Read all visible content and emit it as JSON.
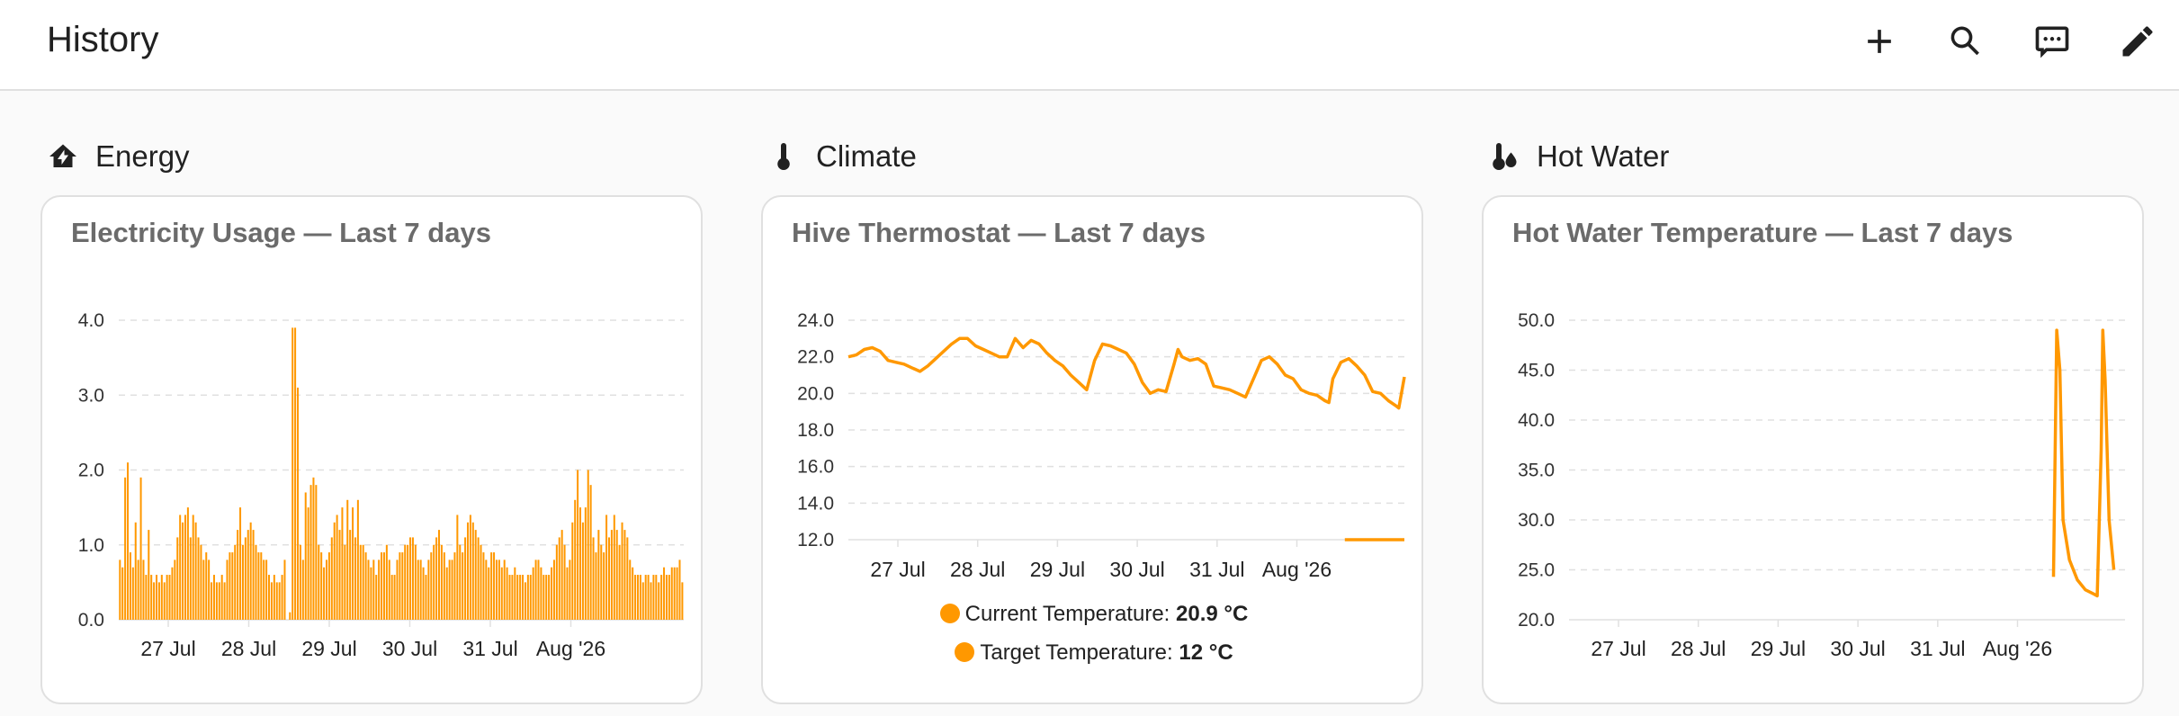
{
  "header": {
    "title": "History",
    "actions": [
      {
        "icon": "plus-icon"
      },
      {
        "icon": "search-icon"
      },
      {
        "icon": "chat-icon"
      },
      {
        "icon": "pencil-icon"
      }
    ]
  },
  "sections": [
    {
      "label": "Energy",
      "icon": "home-lightning-icon"
    },
    {
      "label": "Climate",
      "icon": "thermometer-icon"
    },
    {
      "label": "Hot Water",
      "icon": "thermometer-water-icon"
    }
  ],
  "colors": {
    "accent": "#ff9800",
    "grid": "#e0e0e0"
  },
  "chart_data": [
    {
      "type": "bar",
      "title": "Electricity Usage — Last 7 days",
      "xtick_labels": [
        "27 Jul",
        "28 Jul",
        "29 Jul",
        "30 Jul",
        "31 Jul",
        "Aug '26"
      ],
      "ytick_labels": [
        "0.0",
        "1.0",
        "2.0",
        "3.0",
        "4.0"
      ],
      "ylim": [
        0,
        4.0
      ],
      "grid": true,
      "values": [
        0.8,
        0.7,
        1.9,
        2.1,
        0.9,
        0.7,
        1.3,
        0.8,
        1.9,
        0.8,
        0.6,
        1.2,
        0.6,
        0.5,
        0.6,
        0.5,
        0.6,
        0.5,
        0.6,
        0.6,
        0.7,
        0.8,
        1.1,
        1.4,
        1.3,
        1.4,
        1.5,
        1.1,
        1.4,
        1.3,
        1.1,
        1.0,
        0.8,
        0.9,
        0.8,
        0.5,
        0.6,
        0.5,
        0.5,
        0.6,
        0.5,
        0.8,
        0.9,
        0.9,
        1.0,
        1.2,
        1.5,
        1.0,
        1.1,
        1.2,
        1.3,
        1.2,
        1.0,
        0.9,
        0.9,
        0.8,
        0.8,
        0.6,
        0.5,
        0.6,
        0.5,
        0.5,
        0.6,
        0.8,
        0.0,
        0.1,
        3.9,
        3.9,
        3.1,
        1.0,
        0.8,
        1.7,
        1.5,
        1.8,
        1.9,
        1.8,
        1.0,
        0.9,
        0.7,
        0.8,
        0.9,
        1.1,
        1.3,
        1.4,
        1.2,
        1.5,
        1.0,
        1.6,
        1.2,
        1.5,
        1.1,
        1.6,
        1.0,
        1.0,
        0.9,
        0.8,
        0.7,
        0.8,
        0.6,
        0.8,
        0.9,
        0.9,
        1.0,
        0.8,
        0.6,
        0.6,
        0.8,
        0.9,
        0.9,
        1.0,
        1.0,
        1.1,
        1.1,
        1.0,
        0.8,
        0.8,
        0.7,
        0.6,
        0.8,
        0.9,
        1.0,
        1.1,
        1.2,
        1.0,
        0.9,
        0.7,
        0.8,
        0.8,
        0.9,
        1.4,
        1.0,
        0.9,
        1.1,
        1.3,
        1.4,
        1.3,
        1.2,
        1.1,
        1.0,
        0.9,
        0.8,
        0.7,
        0.9,
        0.9,
        0.8,
        0.8,
        0.7,
        0.8,
        0.7,
        0.6,
        0.6,
        0.7,
        0.6,
        0.6,
        0.6,
        0.5,
        0.6,
        0.6,
        0.7,
        0.8,
        0.8,
        0.7,
        0.6,
        0.6,
        0.6,
        0.7,
        0.8,
        1.0,
        1.1,
        1.2,
        1.0,
        0.7,
        0.8,
        1.3,
        1.6,
        2.0,
        1.5,
        1.3,
        1.5,
        2.0,
        1.8,
        1.1,
        0.9,
        1.2,
        1.0,
        0.9,
        1.4,
        1.1,
        1.2,
        1.4,
        1.2,
        1.0,
        1.3,
        1.2,
        1.1,
        0.8,
        0.7,
        0.6,
        0.6,
        0.6,
        0.5,
        0.6,
        0.6,
        0.5,
        0.6,
        0.6,
        0.5,
        0.6,
        0.7,
        0.6,
        0.6,
        0.7,
        0.7,
        0.7,
        0.8,
        0.5
      ]
    },
    {
      "type": "line",
      "title": "Hive Thermostat — Last 7 days",
      "xtick_labels": [
        "27 Jul",
        "28 Jul",
        "29 Jul",
        "30 Jul",
        "31 Jul",
        "Aug '26"
      ],
      "ytick_labels": [
        "12.0",
        "14.0",
        "16.0",
        "18.0",
        "20.0",
        "22.0",
        "24.0"
      ],
      "ylim": [
        12,
        24
      ],
      "xlim": [
        0,
        7
      ],
      "grid": true,
      "series": [
        {
          "name": "Current Temperature",
          "legend_value": "20.9 °C",
          "points": [
            [
              0,
              22.0
            ],
            [
              0.1,
              22.1
            ],
            [
              0.2,
              22.4
            ],
            [
              0.3,
              22.5
            ],
            [
              0.4,
              22.3
            ],
            [
              0.5,
              21.8
            ],
            [
              0.6,
              21.7
            ],
            [
              0.7,
              21.6
            ],
            [
              0.8,
              21.4
            ],
            [
              0.9,
              21.2
            ],
            [
              1.0,
              21.5
            ],
            [
              1.1,
              21.9
            ],
            [
              1.2,
              22.3
            ],
            [
              1.3,
              22.7
            ],
            [
              1.4,
              23.0
            ],
            [
              1.5,
              23.0
            ],
            [
              1.6,
              22.6
            ],
            [
              1.7,
              22.4
            ],
            [
              1.8,
              22.2
            ],
            [
              1.9,
              22.0
            ],
            [
              2.0,
              22.0
            ],
            [
              2.1,
              23.0
            ],
            [
              2.2,
              22.5
            ],
            [
              2.3,
              22.9
            ],
            [
              2.4,
              22.7
            ],
            [
              2.5,
              22.2
            ],
            [
              2.6,
              21.8
            ],
            [
              2.7,
              21.5
            ],
            [
              2.8,
              21.0
            ],
            [
              2.9,
              20.6
            ],
            [
              3.0,
              20.2
            ],
            [
              3.1,
              21.8
            ],
            [
              3.2,
              22.7
            ],
            [
              3.3,
              22.6
            ],
            [
              3.4,
              22.4
            ],
            [
              3.5,
              22.2
            ],
            [
              3.6,
              21.6
            ],
            [
              3.7,
              20.6
            ],
            [
              3.8,
              20.0
            ],
            [
              3.9,
              20.2
            ],
            [
              4.0,
              20.1
            ],
            [
              4.1,
              21.6
            ],
            [
              4.15,
              22.4
            ],
            [
              4.2,
              22.0
            ],
            [
              4.3,
              21.8
            ],
            [
              4.4,
              21.9
            ],
            [
              4.5,
              21.6
            ],
            [
              4.6,
              20.4
            ],
            [
              4.7,
              20.3
            ],
            [
              4.8,
              20.2
            ],
            [
              4.9,
              20.0
            ],
            [
              5.0,
              19.8
            ],
            [
              5.1,
              20.8
            ],
            [
              5.2,
              21.8
            ],
            [
              5.3,
              22.0
            ],
            [
              5.4,
              21.6
            ],
            [
              5.5,
              21.0
            ],
            [
              5.6,
              20.8
            ],
            [
              5.7,
              20.2
            ],
            [
              5.8,
              20.0
            ],
            [
              5.9,
              19.9
            ],
            [
              6.0,
              19.6
            ],
            [
              6.05,
              19.5
            ],
            [
              6.1,
              20.8
            ],
            [
              6.2,
              21.7
            ],
            [
              6.3,
              21.9
            ],
            [
              6.4,
              21.5
            ],
            [
              6.5,
              21.0
            ],
            [
              6.6,
              20.1
            ],
            [
              6.7,
              20.0
            ],
            [
              6.8,
              19.6
            ],
            [
              6.9,
              19.3
            ],
            [
              6.93,
              19.2
            ],
            [
              7.0,
              20.9
            ]
          ]
        },
        {
          "name": "Target Temperature",
          "legend_value": "12 °C",
          "points": [
            [
              6.25,
              12.0
            ],
            [
              7.0,
              12.0
            ]
          ]
        }
      ]
    },
    {
      "type": "line",
      "title": "Hot Water Temperature — Last 7 days",
      "xtick_labels": [
        "27 Jul",
        "28 Jul",
        "29 Jul",
        "30 Jul",
        "31 Jul",
        "Aug '26"
      ],
      "ytick_labels": [
        "20.0",
        "25.0",
        "30.0",
        "35.0",
        "40.0",
        "45.0",
        "50.0"
      ],
      "ylim": [
        20,
        50
      ],
      "xlim": [
        0,
        7
      ],
      "grid": true,
      "series": [
        {
          "name": "",
          "points": [
            [
              6.1,
              24.3
            ],
            [
              6.14,
              49.0
            ],
            [
              6.18,
              45.0
            ],
            [
              6.22,
              30.0
            ],
            [
              6.3,
              26.0
            ],
            [
              6.4,
              24.0
            ],
            [
              6.5,
              23.0
            ],
            [
              6.6,
              22.6
            ],
            [
              6.65,
              22.4
            ],
            [
              6.7,
              37.0
            ],
            [
              6.72,
              49.0
            ],
            [
              6.75,
              44.0
            ],
            [
              6.8,
              30.0
            ],
            [
              6.86,
              25.0
            ]
          ]
        }
      ]
    }
  ]
}
